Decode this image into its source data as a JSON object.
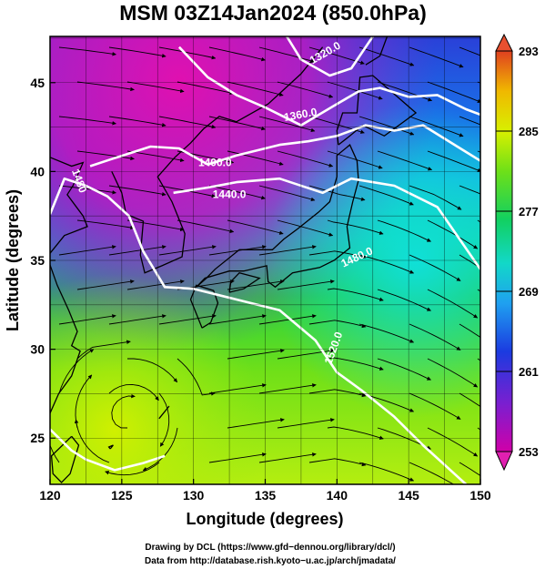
{
  "title": "MSM 03Z14Jan2024 (850.0hPa)",
  "x_axis": {
    "label": "Longitude (degrees)",
    "range": [
      120,
      150
    ],
    "ticks": [
      "120",
      "125",
      "130",
      "135",
      "140",
      "145",
      "150"
    ]
  },
  "y_axis": {
    "label": "Latitude (degrees)",
    "range": [
      22.4,
      47.6
    ],
    "ticks": [
      "25",
      "30",
      "35",
      "40",
      "45"
    ]
  },
  "colorbar": {
    "range": [
      253,
      293
    ],
    "ticks": [
      "293",
      "285",
      "277",
      "269",
      "261",
      "253"
    ],
    "colors": [
      "#d000a8",
      "#7a1fd0",
      "#1b3be0",
      "#1fa0f0",
      "#12d8c8",
      "#12d060",
      "#6ee018",
      "#d8f000",
      "#f0b800",
      "#e04020"
    ]
  },
  "contour_labels": [
    "1320.0",
    "1360.0",
    "1400.0",
    "1440.0",
    "1480",
    "1440.0",
    "1480.0",
    "1520.0"
  ],
  "credits": {
    "line1": "Drawing by DCL (https://www.gfd−dennou.org/library/dcl/)",
    "line2": "Data from http://database.rish.kyoto−u.ac.jp/arch/jmadata/"
  }
}
